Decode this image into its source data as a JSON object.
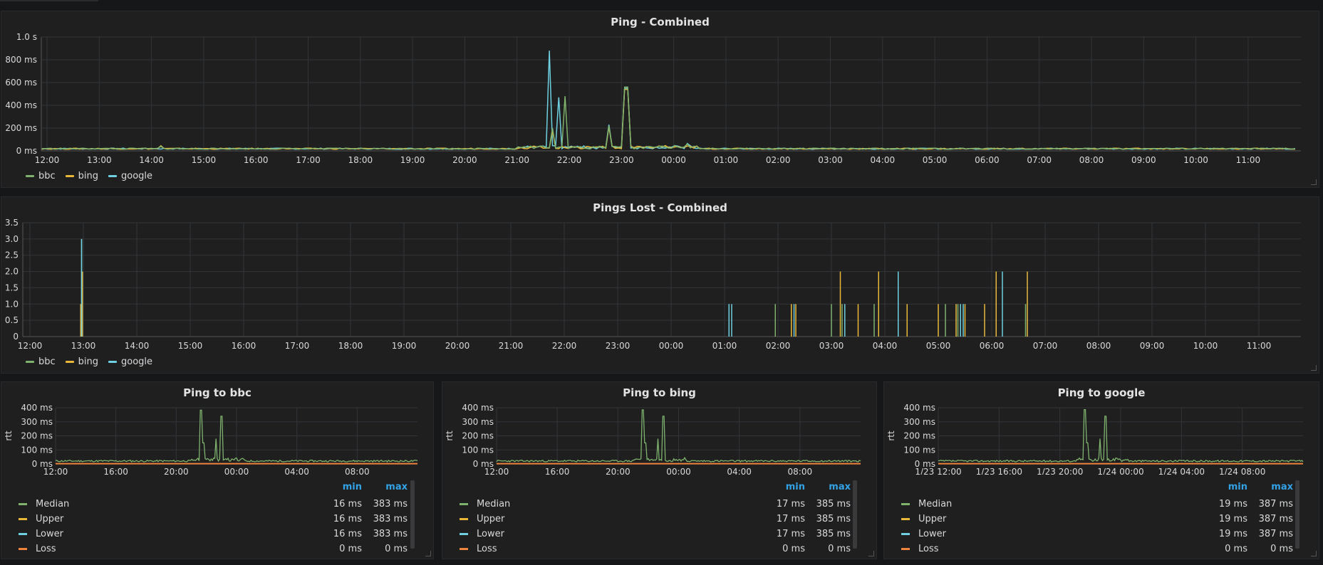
{
  "colors": {
    "bbc": "#7eb26d",
    "bing": "#eab839",
    "google": "#6ed0e0",
    "median": "#7eb26d",
    "upper": "#eab839",
    "lower": "#6ed0e0",
    "loss": "#ef843c"
  },
  "panels": {
    "ping_combined": {
      "title": "Ping - Combined",
      "legend": [
        {
          "name": "bbc",
          "color": "#7eb26d"
        },
        {
          "name": "bing",
          "color": "#eab839"
        },
        {
          "name": "google",
          "color": "#6ed0e0"
        }
      ]
    },
    "pings_lost": {
      "title": "Pings Lost - Combined",
      "legend": [
        {
          "name": "bbc",
          "color": "#7eb26d"
        },
        {
          "name": "bing",
          "color": "#eab839"
        },
        {
          "name": "google",
          "color": "#6ed0e0"
        }
      ]
    },
    "ping_bbc": {
      "title": "Ping to bbc",
      "table_header": {
        "min": "min",
        "max": "max"
      },
      "rows": [
        {
          "name": "Median",
          "min": "16 ms",
          "max": "383 ms",
          "color": "#7eb26d"
        },
        {
          "name": "Upper",
          "min": "16 ms",
          "max": "383 ms",
          "color": "#eab839"
        },
        {
          "name": "Lower",
          "min": "16 ms",
          "max": "383 ms",
          "color": "#6ed0e0"
        },
        {
          "name": "Loss",
          "min": "0 ms",
          "max": "0 ms",
          "color": "#ef843c"
        }
      ]
    },
    "ping_bing": {
      "title": "Ping to bing",
      "table_header": {
        "min": "min",
        "max": "max"
      },
      "rows": [
        {
          "name": "Median",
          "min": "17 ms",
          "max": "385 ms",
          "color": "#7eb26d"
        },
        {
          "name": "Upper",
          "min": "17 ms",
          "max": "385 ms",
          "color": "#eab839"
        },
        {
          "name": "Lower",
          "min": "17 ms",
          "max": "385 ms",
          "color": "#6ed0e0"
        },
        {
          "name": "Loss",
          "min": "0 ms",
          "max": "0 ms",
          "color": "#ef843c"
        }
      ]
    },
    "ping_google": {
      "title": "Ping to google",
      "table_header": {
        "min": "min",
        "max": "max"
      },
      "rows": [
        {
          "name": "Median",
          "min": "19 ms",
          "max": "387 ms",
          "color": "#7eb26d"
        },
        {
          "name": "Upper",
          "min": "19 ms",
          "max": "387 ms",
          "color": "#eab839"
        },
        {
          "name": "Lower",
          "min": "19 ms",
          "max": "387 ms",
          "color": "#6ed0e0"
        },
        {
          "name": "Loss",
          "min": "0 ms",
          "max": "0 ms",
          "color": "#ef843c"
        }
      ]
    }
  },
  "chart_data": [
    {
      "type": "line",
      "title": "Ping - Combined",
      "x": [
        "12:00",
        "13:00",
        "14:00",
        "15:00",
        "16:00",
        "17:00",
        "18:00",
        "19:00",
        "20:00",
        "21:00",
        "22:00",
        "23:00",
        "00:00",
        "01:00",
        "02:00",
        "03:00",
        "04:00",
        "05:00",
        "06:00",
        "07:00",
        "08:00",
        "09:00",
        "10:00",
        "11:00"
      ],
      "yticks": [
        "0 ms",
        "200 ms",
        "400 ms",
        "600 ms",
        "800 ms",
        "1.0 s"
      ],
      "ylim": [
        0,
        1000
      ],
      "grid": true,
      "legend_position": "bottom-left",
      "series": [
        {
          "name": "bbc",
          "spikes": [
            [
              "13:00",
              18
            ],
            [
              "14:10",
              40
            ],
            [
              "21:40",
              200
            ],
            [
              "21:55",
              480
            ],
            [
              "22:45",
              220
            ],
            [
              "23:05",
              560
            ],
            [
              "00:15",
              60
            ]
          ]
        },
        {
          "name": "bing",
          "spikes": [
            [
              "14:10",
              45
            ],
            [
              "21:40",
              180
            ],
            [
              "22:45",
              210
            ],
            [
              "23:05",
              540
            ]
          ]
        },
        {
          "name": "google",
          "spikes": [
            [
              "13:00",
              20
            ],
            [
              "21:38",
              880
            ],
            [
              "21:48",
              470
            ],
            [
              "22:45",
              230
            ],
            [
              "23:05",
              550
            ],
            [
              "00:15",
              65
            ]
          ]
        }
      ]
    },
    {
      "type": "bar",
      "title": "Pings Lost - Combined",
      "x": [
        "12:00",
        "13:00",
        "14:00",
        "15:00",
        "16:00",
        "17:00",
        "18:00",
        "19:00",
        "20:00",
        "21:00",
        "22:00",
        "23:00",
        "00:00",
        "01:00",
        "02:00",
        "03:00",
        "04:00",
        "05:00",
        "06:00",
        "07:00",
        "08:00",
        "09:00",
        "10:00",
        "11:00"
      ],
      "yticks": [
        "0",
        "0.5",
        "1.0",
        "1.5",
        "2.0",
        "2.5",
        "3.0",
        "3.5"
      ],
      "ylim": [
        0,
        3.5
      ],
      "grid": true,
      "legend_position": "bottom-left",
      "series": [
        {
          "name": "bbc",
          "events": [
            [
              "12:58",
              3
            ],
            [
              "01:57",
              1
            ],
            [
              "03:00",
              1
            ],
            [
              "03:12",
              1
            ],
            [
              "03:48",
              1
            ],
            [
              "05:08",
              1
            ],
            [
              "05:22",
              1
            ],
            [
              "06:38",
              1
            ]
          ]
        },
        {
          "name": "bing",
          "events": [
            [
              "12:59",
              2
            ],
            [
              "12:57",
              1
            ],
            [
              "02:15",
              1
            ],
            [
              "02:20",
              1
            ],
            [
              "03:10",
              2
            ],
            [
              "03:30",
              1
            ],
            [
              "03:53",
              2
            ],
            [
              "04:25",
              1
            ],
            [
              "05:00",
              1
            ],
            [
              "05:20",
              1
            ],
            [
              "05:30",
              1
            ],
            [
              "05:52",
              1
            ],
            [
              "06:05",
              2
            ],
            [
              "06:40",
              2
            ]
          ]
        },
        {
          "name": "google",
          "events": [
            [
              "12:58",
              3
            ],
            [
              "01:05",
              1
            ],
            [
              "01:08",
              1
            ],
            [
              "02:18",
              1
            ],
            [
              "03:15",
              1
            ],
            [
              "04:15",
              2
            ],
            [
              "05:25",
              1
            ],
            [
              "05:28",
              1
            ],
            [
              "06:12",
              2
            ]
          ]
        }
      ]
    },
    {
      "type": "line",
      "title": "Ping to bbc",
      "ylabel": "rtt",
      "x": [
        "12:00",
        "16:00",
        "20:00",
        "00:00",
        "04:00",
        "08:00"
      ],
      "yticks": [
        "0 ms",
        "100 ms",
        "200 ms",
        "300 ms",
        "400 ms"
      ],
      "ylim": [
        0,
        400
      ],
      "series": [
        {
          "name": "Median",
          "spikes": [
            [
              "21:38",
              383
            ],
            [
              "21:48",
              150
            ],
            [
              "22:40",
              180
            ],
            [
              "23:00",
              340
            ]
          ]
        },
        {
          "name": "Loss",
          "spikes": []
        }
      ]
    },
    {
      "type": "line",
      "title": "Ping to bing",
      "ylabel": "rtt",
      "x": [
        "12:00",
        "16:00",
        "20:00",
        "00:00",
        "04:00",
        "08:00"
      ],
      "yticks": [
        "0 ms",
        "100 ms",
        "200 ms",
        "300 ms",
        "400 ms"
      ],
      "ylim": [
        0,
        400
      ],
      "series": [
        {
          "name": "Median",
          "spikes": [
            [
              "21:38",
              385
            ],
            [
              "21:48",
              150
            ],
            [
              "22:40",
              180
            ],
            [
              "23:00",
              340
            ]
          ]
        },
        {
          "name": "Loss",
          "spikes": []
        }
      ]
    },
    {
      "type": "line",
      "title": "Ping to google",
      "ylabel": "rtt",
      "x": [
        "1/23 12:00",
        "1/23 16:00",
        "1/23 20:00",
        "1/24 00:00",
        "1/24 04:00",
        "1/24 08:00"
      ],
      "yticks": [
        "0 ms",
        "100 ms",
        "200 ms",
        "300 ms",
        "400 ms"
      ],
      "ylim": [
        0,
        400
      ],
      "series": [
        {
          "name": "Median",
          "spikes": [
            [
              "21:38",
              387
            ],
            [
              "21:48",
              150
            ],
            [
              "22:40",
              180
            ],
            [
              "23:00",
              340
            ]
          ]
        },
        {
          "name": "Loss",
          "spikes": []
        }
      ]
    }
  ]
}
